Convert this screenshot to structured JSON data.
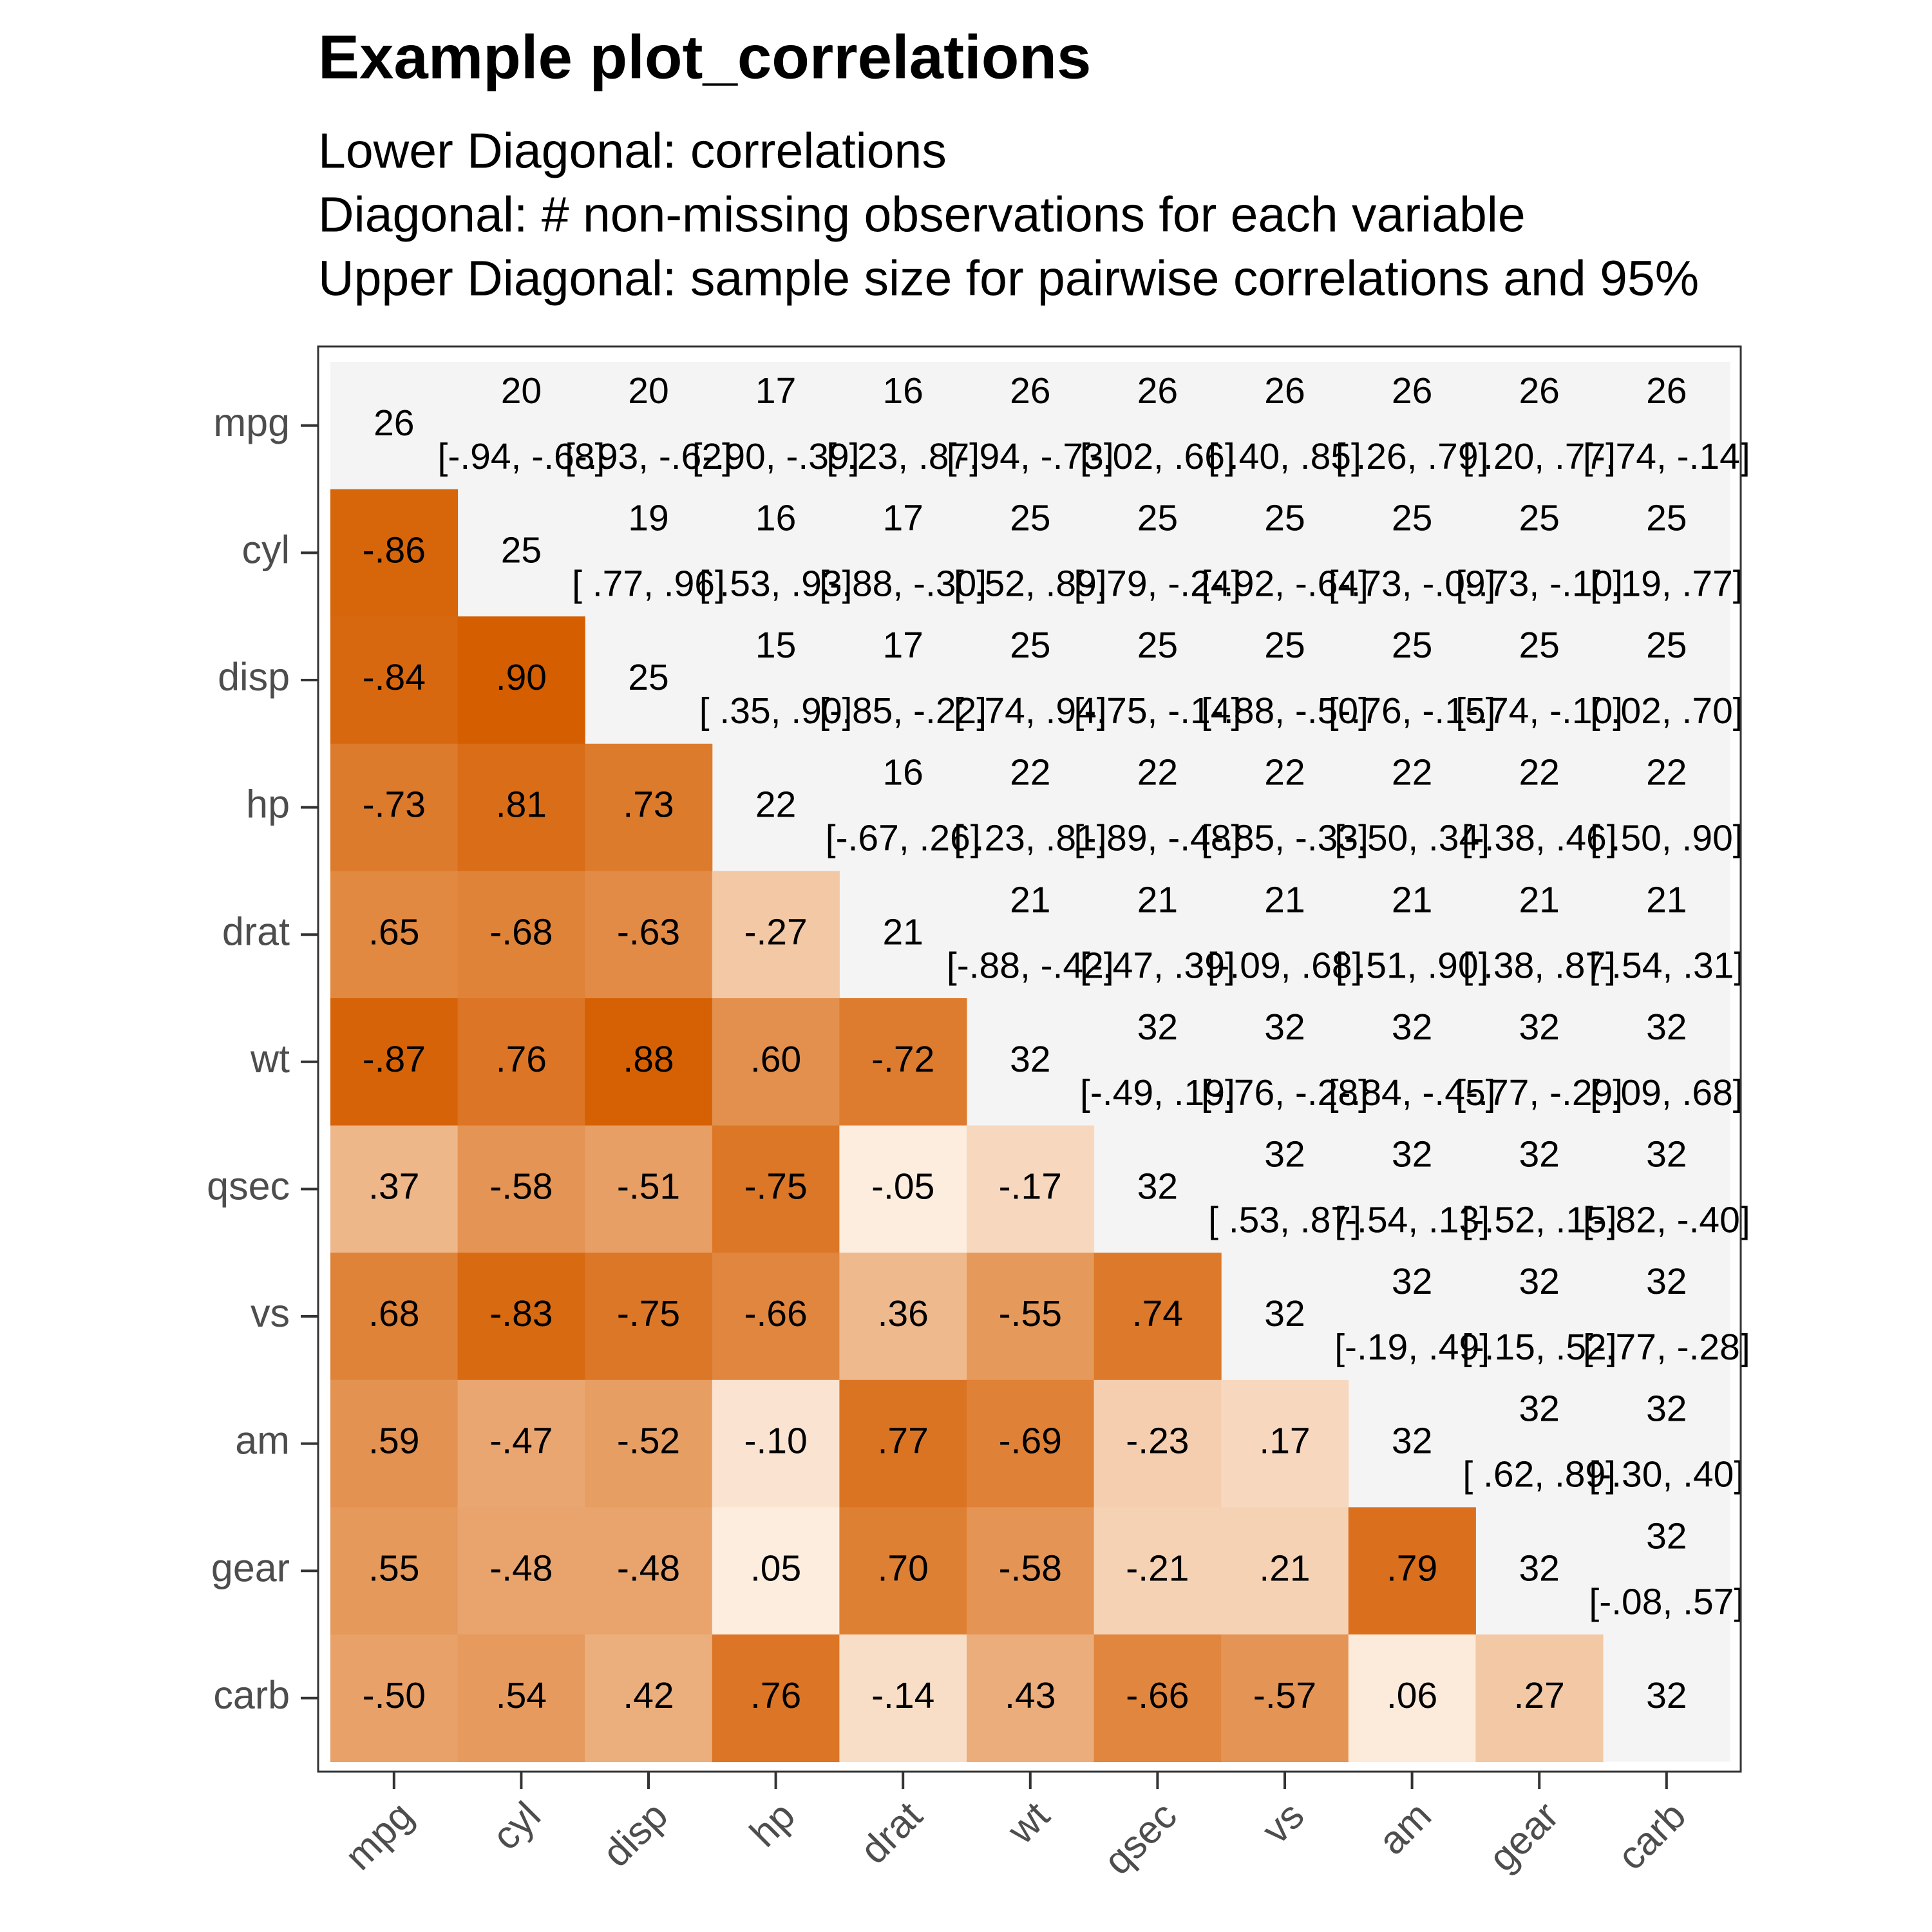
{
  "chart_data": {
    "type": "correlation-matrix",
    "title": "Example plot_correlations",
    "subtitle": [
      "Lower Diagonal: correlations",
      "Diagonal: # non-missing observations for each variable",
      "Upper Diagonal: sample size for pairwise correlations and 95%"
    ],
    "variables": [
      "mpg",
      "cyl",
      "disp",
      "hp",
      "drat",
      "wt",
      "qsec",
      "vs",
      "am",
      "gear",
      "carb"
    ],
    "tile_colors": [
      "#fff5eb",
      "#d55e00"
    ],
    "background": "#f4f4f4",
    "correlations": [
      [
        -0.86
      ],
      [
        -0.84,
        0.9
      ],
      [
        -0.73,
        0.81,
        0.73
      ],
      [
        0.65,
        -0.68,
        -0.63,
        -0.27
      ],
      [
        -0.87,
        0.76,
        0.88,
        0.6,
        -0.72
      ],
      [
        0.37,
        -0.58,
        -0.51,
        -0.75,
        -0.05,
        -0.17
      ],
      [
        0.68,
        -0.83,
        -0.75,
        -0.66,
        0.36,
        -0.55,
        0.74
      ],
      [
        0.59,
        -0.47,
        -0.52,
        -0.1,
        0.77,
        -0.69,
        -0.23,
        0.17
      ],
      [
        0.55,
        -0.48,
        -0.48,
        0.05,
        0.7,
        -0.58,
        -0.21,
        0.21,
        0.79
      ],
      [
        -0.5,
        0.54,
        0.42,
        0.76,
        -0.14,
        0.43,
        -0.66,
        -0.57,
        0.06,
        0.27
      ]
    ],
    "correlation_labels": [
      [
        "-.86"
      ],
      [
        "-.84",
        ".90"
      ],
      [
        "-.73",
        ".81",
        ".73"
      ],
      [
        ".65",
        "-.68",
        "-.63",
        "-.27"
      ],
      [
        "-.87",
        ".76",
        ".88",
        ".60",
        "-.72"
      ],
      [
        ".37",
        "-.58",
        "-.51",
        "-.75",
        "-.05",
        "-.17"
      ],
      [
        ".68",
        "-.83",
        "-.75",
        "-.66",
        ".36",
        "-.55",
        ".74"
      ],
      [
        ".59",
        "-.47",
        "-.52",
        "-.10",
        ".77",
        "-.69",
        "-.23",
        ".17"
      ],
      [
        ".55",
        "-.48",
        "-.48",
        ".05",
        ".70",
        "-.58",
        "-.21",
        ".21",
        ".79"
      ],
      [
        "-.50",
        ".54",
        ".42",
        ".76",
        "-.14",
        ".43",
        "-.66",
        "-.57",
        ".06",
        ".27"
      ]
    ],
    "diagonal": [
      26,
      25,
      25,
      22,
      21,
      32,
      32,
      32,
      32,
      32,
      32
    ],
    "pair_n": [
      [
        20,
        20,
        17,
        16,
        26,
        26,
        26,
        26,
        26,
        26
      ],
      [
        19,
        16,
        17,
        25,
        25,
        25,
        25,
        25,
        25
      ],
      [
        15,
        17,
        25,
        25,
        25,
        25,
        25,
        25
      ],
      [
        16,
        22,
        22,
        22,
        22,
        22,
        22
      ],
      [
        21,
        21,
        21,
        21,
        21,
        21
      ],
      [
        32,
        32,
        32,
        32,
        32
      ],
      [
        32,
        32,
        32,
        32
      ],
      [
        32,
        32,
        32
      ],
      [
        32,
        32
      ],
      [
        32
      ]
    ],
    "pair_ci": [
      [
        "[-.94, -.68]",
        "[-.93, -.62]",
        "[-.90, -.39]",
        "[ .23, .87]",
        "[-.94, -.73]",
        "[-.02, .66]",
        "[ .40, .85]",
        "[ .26, .79]",
        "[ .20, .77]",
        "[-.74, -.14]"
      ],
      [
        "[ .77, .96]",
        "[ .53, .93]",
        "[-.88, -.30]",
        "[ .52, .89]",
        "[-.79, -.24]",
        "[-.92, -.64]",
        "[-.73, -.09]",
        "[-.73, -.10]",
        "[ .19, .77]"
      ],
      [
        "[ .35, .90]",
        "[-.85, -.22]",
        "[ .74, .94]",
        "[-.75, -.14]",
        "[-.88, -.50]",
        "[-.76, -.15]",
        "[-.74, -.10]",
        "[ .02, .70]"
      ],
      [
        "[-.67, .26]",
        "[ .23, .81]",
        "[-.89, -.48]",
        "[-.85, -.33]",
        "[-.50, .34]",
        "[-.38, .46]",
        "[ .50, .90]"
      ],
      [
        "[-.88, -.42]",
        "[-.47, .39]",
        "[-.09, .68]",
        "[ .51, .90]",
        "[ .38, .87]",
        "[-.54, .31]"
      ],
      [
        "[-.49, .19]",
        "[-.76, -.28]",
        "[-.84, -.45]",
        "[-.77, -.29]",
        "[ .09, .68]"
      ],
      [
        "[ .53, .87]",
        "[-.54, .13]",
        "[-.52, .15]",
        "[-.82, -.40]"
      ],
      [
        "[-.19, .49]",
        "[-.15, .52]",
        "[-.77, -.28]"
      ],
      [
        "[ .62, .89]",
        "[-.30, .40]"
      ],
      [
        "[-.08, .57]"
      ]
    ]
  }
}
